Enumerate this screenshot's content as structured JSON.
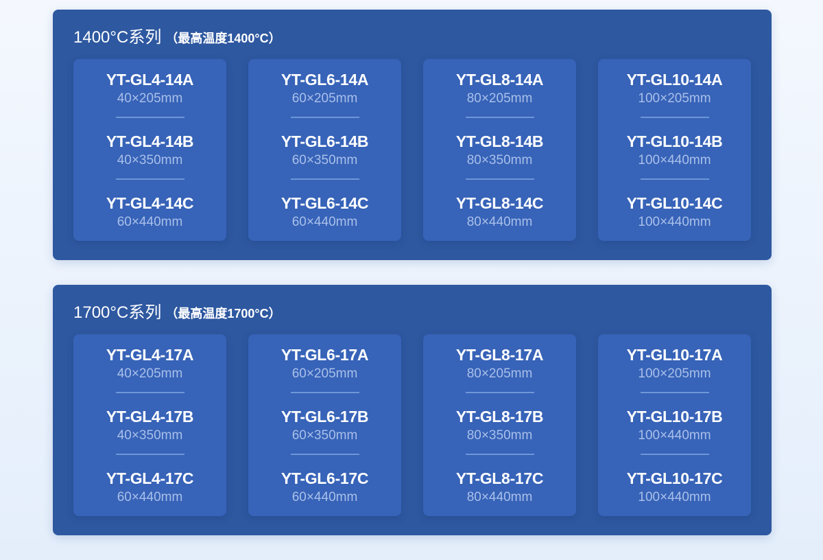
{
  "series": [
    {
      "title": "1400°C系列",
      "subtitle": "（最高温度1400°C）",
      "cards": [
        {
          "items": [
            {
              "model": "YT-GL4-14A",
              "dims": "40×205mm"
            },
            {
              "model": "YT-GL4-14B",
              "dims": "40×350mm"
            },
            {
              "model": "YT-GL4-14C",
              "dims": "60×440mm"
            }
          ]
        },
        {
          "items": [
            {
              "model": "YT-GL6-14A",
              "dims": "60×205mm"
            },
            {
              "model": "YT-GL6-14B",
              "dims": "60×350mm"
            },
            {
              "model": "YT-GL6-14C",
              "dims": "60×440mm"
            }
          ]
        },
        {
          "items": [
            {
              "model": "YT-GL8-14A",
              "dims": "80×205mm"
            },
            {
              "model": "YT-GL8-14B",
              "dims": "80×350mm"
            },
            {
              "model": "YT-GL8-14C",
              "dims": "80×440mm"
            }
          ]
        },
        {
          "items": [
            {
              "model": "YT-GL10-14A",
              "dims": "100×205mm"
            },
            {
              "model": "YT-GL10-14B",
              "dims": "100×440mm"
            },
            {
              "model": "YT-GL10-14C",
              "dims": "100×440mm"
            }
          ]
        }
      ]
    },
    {
      "title": "1700°C系列",
      "subtitle": "（最高温度1700°C）",
      "cards": [
        {
          "items": [
            {
              "model": "YT-GL4-17A",
              "dims": "40×205mm"
            },
            {
              "model": "YT-GL4-17B",
              "dims": "40×350mm"
            },
            {
              "model": "YT-GL4-17C",
              "dims": "60×440mm"
            }
          ]
        },
        {
          "items": [
            {
              "model": "YT-GL6-17A",
              "dims": "60×205mm"
            },
            {
              "model": "YT-GL6-17B",
              "dims": "60×350mm"
            },
            {
              "model": "YT-GL6-17C",
              "dims": "60×440mm"
            }
          ]
        },
        {
          "items": [
            {
              "model": "YT-GL8-17A",
              "dims": "80×205mm"
            },
            {
              "model": "YT-GL8-17B",
              "dims": "80×350mm"
            },
            {
              "model": "YT-GL8-17C",
              "dims": "80×440mm"
            }
          ]
        },
        {
          "items": [
            {
              "model": "YT-GL10-17A",
              "dims": "100×205mm"
            },
            {
              "model": "YT-GL10-17B",
              "dims": "100×440mm"
            },
            {
              "model": "YT-GL10-17C",
              "dims": "100×440mm"
            }
          ]
        }
      ]
    }
  ],
  "colors": {
    "panel": "#2e58a0",
    "card": "#3763b8",
    "dims_text": "#a9c0ea",
    "divider": "#6f97d8"
  }
}
